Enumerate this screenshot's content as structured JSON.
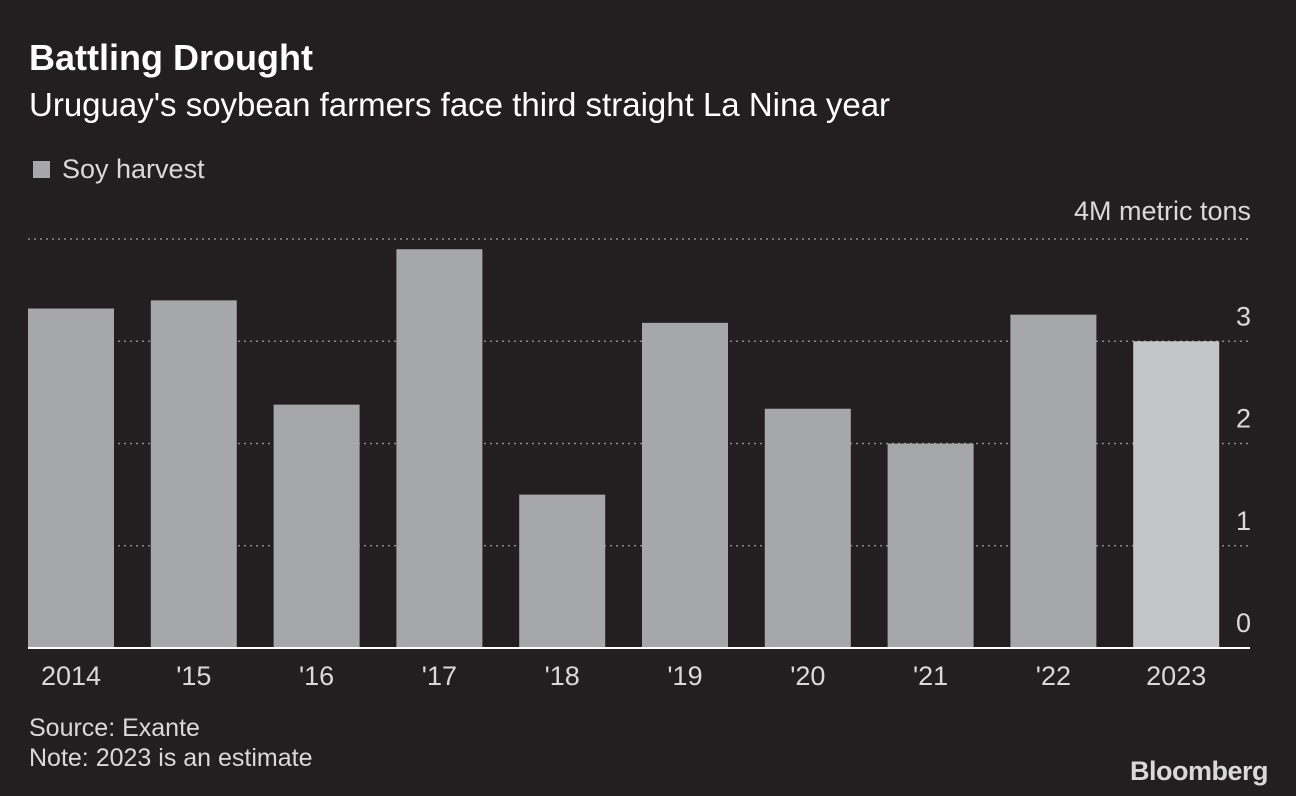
{
  "header": {
    "title": "Battling Drought",
    "subtitle": "Uruguay's soybean farmers face third straight La Nina year"
  },
  "legend": {
    "label": "Soy harvest",
    "color": "#a6a7a9"
  },
  "unit_label": "4M metric tons",
  "colors": {
    "background": "#231f20",
    "bar": "#a6a7a9",
    "bar_estimate": "#c4c5c7",
    "grid": "#8a8a8a",
    "axis": "#ffffff",
    "text": "#d9d9d9"
  },
  "footer": {
    "source": "Source: Exante",
    "note": "Note: 2023 is an estimate",
    "brand": "Bloomberg"
  },
  "chart_data": {
    "type": "bar",
    "title": "Battling Drought",
    "subtitle": "Uruguay's soybean farmers face third straight La Nina year",
    "ylabel": "4M metric tons",
    "xlabel": "",
    "categories": [
      "2014",
      "'15",
      "'16",
      "'17",
      "'18",
      "'19",
      "'20",
      "'21",
      "'22",
      "2023"
    ],
    "series": [
      {
        "name": "Soy harvest",
        "values": [
          3.32,
          3.4,
          2.38,
          3.9,
          1.5,
          3.18,
          2.34,
          2.0,
          3.26,
          3.0
        ]
      }
    ],
    "estimate_categories": [
      "2023"
    ],
    "ylim": [
      0,
      4
    ],
    "yticks": [
      0,
      1,
      2,
      3,
      4
    ],
    "ytick_labels": [
      "0",
      "1",
      "2",
      "3",
      "4M metric tons"
    ],
    "grid": true,
    "legend_position": "top-left"
  }
}
